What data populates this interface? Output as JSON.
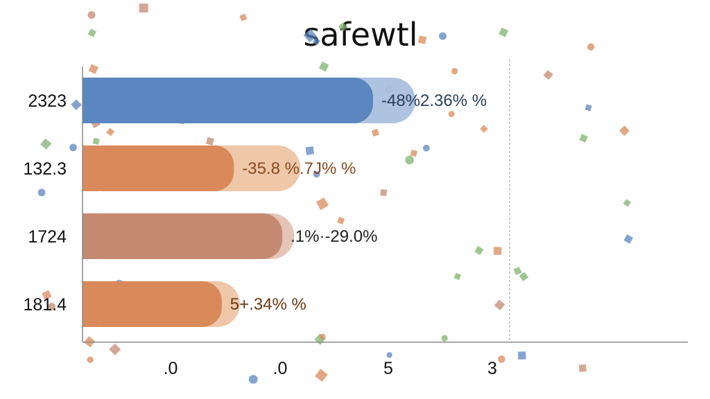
{
  "chart_data": {
    "type": "bar",
    "orientation": "horizontal",
    "title": "safewtl",
    "categories": [
      "2323",
      "132.3",
      "1724",
      "181.4"
    ],
    "x_tick_labels": [
      ".0",
      ".0",
      "5",
      "3"
    ],
    "bars": [
      {
        "category": "2323",
        "value": 48,
        "extended": 55,
        "label": "-48%2.36% %",
        "color": "#5b86c0",
        "light_color": "#a9c0dd",
        "text_color": "#2c3e58"
      },
      {
        "category": "132.3",
        "value": 25,
        "extended": 36,
        "label": "-35.8 %.7J% %",
        "color": "#d9895a",
        "light_color": "#eec4a4",
        "text_color": "#8a4a1e"
      },
      {
        "category": "1724",
        "value": 33,
        "extended": 35,
        "label": ".1%·-29.0%",
        "color": "#c48a72",
        "light_color": "#e3c2b2",
        "text_color": "#222222"
      },
      {
        "category": "181.4",
        "value": 23,
        "extended": 26,
        "label": "5+.34% %",
        "color": "#d9895a",
        "light_color": "#eec4a4",
        "text_color": "#6b3a14"
      }
    ],
    "xlim": [
      0,
      100
    ],
    "grid": false,
    "legend": "none"
  },
  "decor": {
    "marker_colors": [
      "#7fb36e",
      "#d9895a",
      "#5b86c0",
      "#c48a72"
    ]
  }
}
